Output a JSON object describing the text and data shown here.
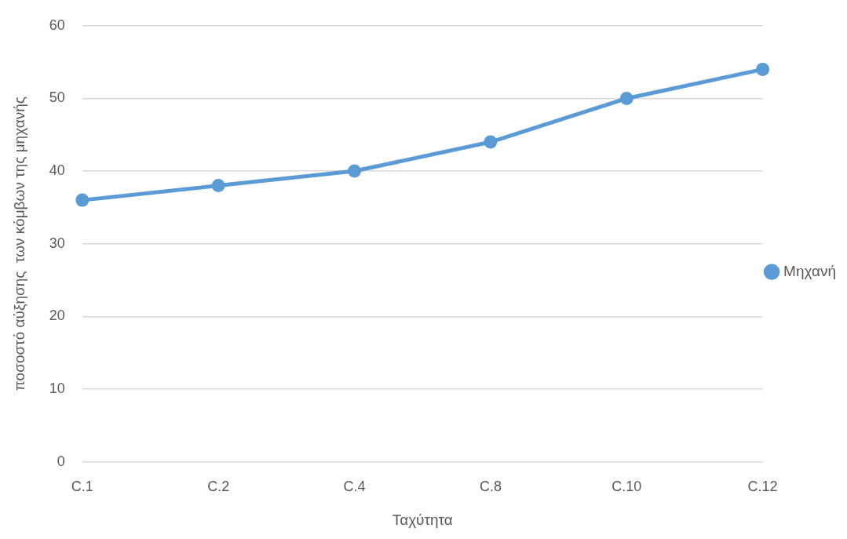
{
  "chart_data": {
    "type": "line",
    "xlabel": "Ταχύτητα",
    "ylabel": "ποσοστό αύξησης  των κόμβων της μηχανής",
    "categories": [
      "C.1",
      "C.2",
      "C.4",
      "C.8",
      "C.10",
      "C.12"
    ],
    "series": [
      {
        "name": "Μηχανή",
        "color": "#5b9bd5",
        "values": [
          36,
          38,
          40,
          44,
          50,
          54
        ]
      }
    ],
    "ylim": [
      0,
      60
    ],
    "yticks": [
      0,
      10,
      20,
      30,
      40,
      50,
      60
    ],
    "grid": "y",
    "legend": "right",
    "marker": "circle",
    "line_style": "solid"
  }
}
